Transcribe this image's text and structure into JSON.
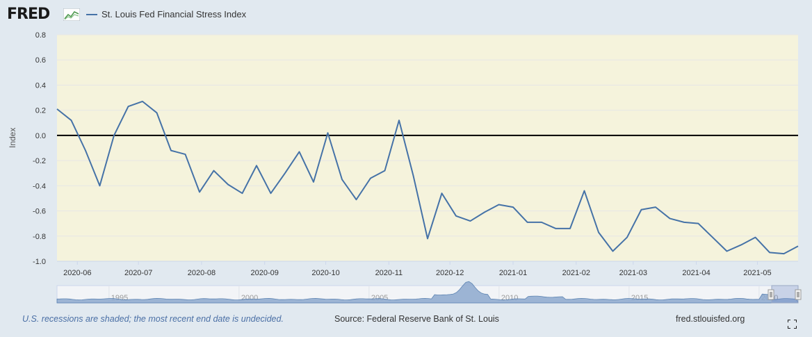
{
  "header": {
    "logo_text": "FRED",
    "logo_icon": "fred-chart-logo-icon",
    "legend_label": "St. Louis Fed Financial Stress Index",
    "series_color": "#4572a7"
  },
  "chart_data": {
    "type": "line",
    "ylabel": "Index",
    "ylim": [
      -1.0,
      0.8
    ],
    "yticks": [
      "0.8",
      "0.6",
      "0.4",
      "0.2",
      "0.0",
      "-0.2",
      "-0.4",
      "-0.6",
      "-0.8",
      "-1.0"
    ],
    "xticks": [
      "2020-06",
      "2020-07",
      "2020-08",
      "2020-09",
      "2020-10",
      "2020-11",
      "2020-12",
      "2021-01",
      "2021-02",
      "2021-03",
      "2021-04",
      "2021-05"
    ],
    "navigator_ticks": [
      "1995",
      "2000",
      "2005",
      "2010",
      "2015",
      "2020"
    ],
    "grid": true,
    "plot_background": "#f5f3dc",
    "zero_line": true,
    "series": [
      {
        "name": "St. Louis Fed Financial Stress Index",
        "x": [
          "2020-05-22",
          "2020-05-29",
          "2020-06-05",
          "2020-06-12",
          "2020-06-19",
          "2020-06-26",
          "2020-07-03",
          "2020-07-10",
          "2020-07-17",
          "2020-07-24",
          "2020-07-31",
          "2020-08-07",
          "2020-08-14",
          "2020-08-21",
          "2020-08-28",
          "2020-09-04",
          "2020-09-11",
          "2020-09-18",
          "2020-09-25",
          "2020-10-02",
          "2020-10-09",
          "2020-10-16",
          "2020-10-23",
          "2020-10-30",
          "2020-11-06",
          "2020-11-13",
          "2020-11-20",
          "2020-11-27",
          "2020-12-04",
          "2020-12-11",
          "2020-12-18",
          "2020-12-25",
          "2021-01-01",
          "2021-01-08",
          "2021-01-15",
          "2021-01-22",
          "2021-01-29",
          "2021-02-05",
          "2021-02-12",
          "2021-02-19",
          "2021-02-26",
          "2021-03-05",
          "2021-03-12",
          "2021-03-19",
          "2021-03-26",
          "2021-04-02",
          "2021-04-09",
          "2021-04-16",
          "2021-04-23",
          "2021-04-30",
          "2021-05-07",
          "2021-05-14",
          "2021-05-21"
        ],
        "values": [
          0.21,
          0.12,
          -0.12,
          -0.4,
          0.0,
          0.23,
          0.27,
          0.18,
          -0.12,
          -0.15,
          -0.45,
          -0.28,
          -0.39,
          -0.46,
          -0.24,
          -0.46,
          -0.3,
          -0.13,
          -0.37,
          0.02,
          -0.35,
          -0.51,
          -0.34,
          -0.28,
          0.12,
          -0.32,
          -0.82,
          -0.46,
          -0.64,
          -0.68,
          -0.61,
          -0.55,
          -0.57,
          -0.69,
          -0.69,
          -0.74,
          -0.74,
          -0.44,
          -0.77,
          -0.92,
          -0.81,
          -0.59,
          -0.57,
          -0.66,
          -0.69,
          -0.7,
          -0.81,
          -0.92,
          -0.87,
          -0.81,
          -0.93,
          -0.94,
          -0.88
        ]
      }
    ]
  },
  "footer": {
    "note": "U.S. recessions are shaded; the most recent end date is undecided.",
    "source": "Source: Federal Reserve Bank of St. Louis",
    "site": "fred.stlouisfed.org",
    "fullscreen_icon": "fullscreen-icon"
  }
}
